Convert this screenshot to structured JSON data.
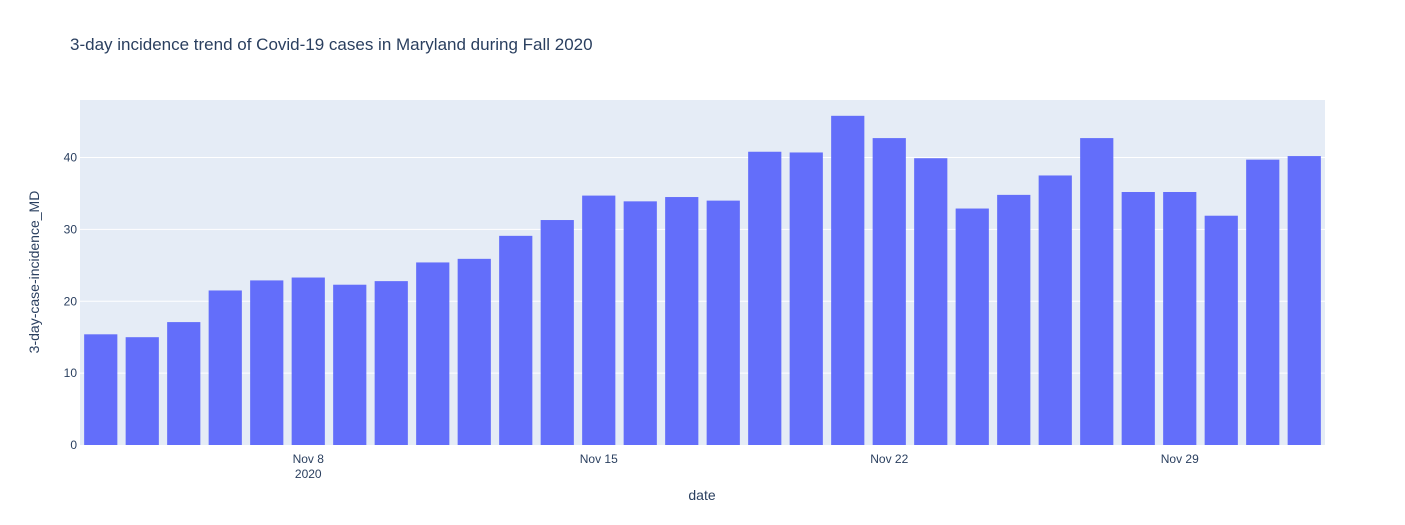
{
  "chart_data": {
    "type": "bar",
    "title": "3-day incidence trend of Covid-19 cases in Maryland during Fall 2020",
    "xlabel": "date",
    "ylabel": "3-day-case-incidence_MD",
    "x": [
      "2020-11-03",
      "2020-11-04",
      "2020-11-05",
      "2020-11-06",
      "2020-11-07",
      "2020-11-08",
      "2020-11-09",
      "2020-11-10",
      "2020-11-11",
      "2020-11-12",
      "2020-11-13",
      "2020-11-14",
      "2020-11-15",
      "2020-11-16",
      "2020-11-17",
      "2020-11-18",
      "2020-11-19",
      "2020-11-20",
      "2020-11-21",
      "2020-11-22",
      "2020-11-23",
      "2020-11-24",
      "2020-11-25",
      "2020-11-26",
      "2020-11-27",
      "2020-11-28",
      "2020-11-29",
      "2020-11-30",
      "2020-12-01",
      "2020-12-02"
    ],
    "values": [
      15.4,
      15.0,
      17.1,
      21.5,
      22.9,
      23.3,
      22.3,
      22.8,
      25.4,
      25.9,
      29.1,
      31.3,
      34.7,
      33.9,
      34.5,
      34.0,
      40.8,
      40.7,
      45.8,
      42.7,
      39.9,
      32.9,
      34.8,
      37.5,
      42.7,
      35.2,
      35.2,
      31.9,
      39.7,
      40.2
    ],
    "ylim": [
      0,
      48
    ],
    "yticks": [
      0,
      10,
      20,
      30,
      40
    ],
    "xticks": [
      {
        "date": "2020-11-08",
        "label": "Nov 8",
        "sublabel": "2020"
      },
      {
        "date": "2020-11-15",
        "label": "Nov 15",
        "sublabel": ""
      },
      {
        "date": "2020-11-22",
        "label": "Nov 22",
        "sublabel": ""
      },
      {
        "date": "2020-11-29",
        "label": "Nov 29",
        "sublabel": ""
      }
    ],
    "grid": true,
    "colors": {
      "bar": "#636efa",
      "plot_bg": "#e5ecf6",
      "grid": "#ffffff",
      "text": "#2a3f5f"
    }
  }
}
